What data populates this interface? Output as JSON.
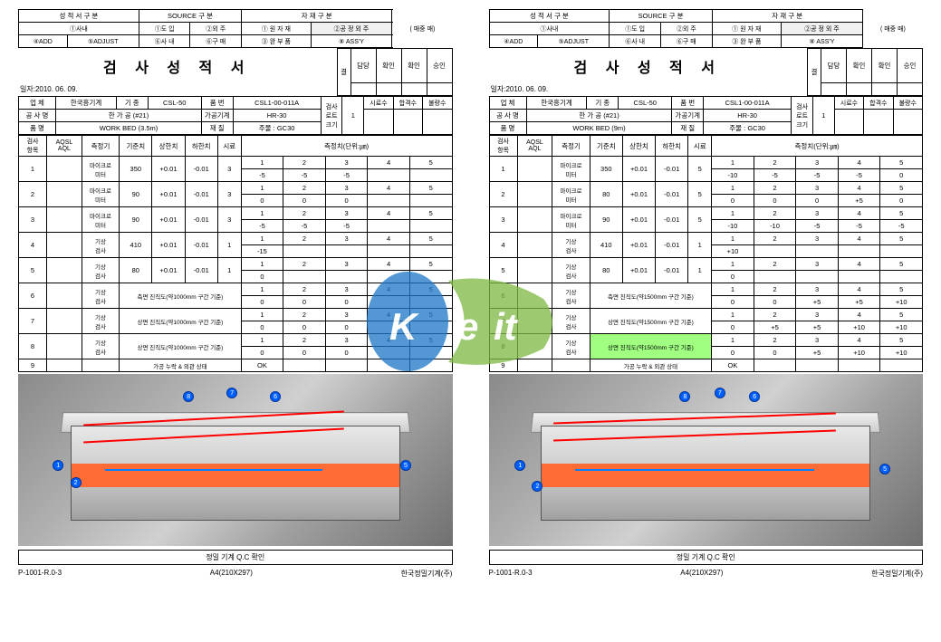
{
  "header": {
    "col1_title": "성 적 서 구 분",
    "col2_title": "SOURCE 구 분",
    "col3_title": "자 재 구 분",
    "r1_left": "①사내",
    "r2_left1": "④ADD",
    "r2_left2": "⑤ADJUST",
    "r1_c2a": "①도 입",
    "r1_c2b": "②외 주",
    "r2_c2a": "⑥사 내",
    "r2_c2b": "⑥구 매",
    "r1_c3a": "① 원 자 재",
    "r1_c3b": "②공 정 외 주",
    "r2_c3a": "③ 완 부 품",
    "r2_c3b": "⑧ ASS'Y",
    "paren": "(     매중     매)",
    "title": "검 사 성 적 서",
    "date_label": "일자:2010. 06. 09.",
    "approval_g": "결",
    "approval_j": "재",
    "appr_c1": "담당",
    "appr_c2": "확인",
    "appr_c3": "확인",
    "appr_c4": "승인"
  },
  "info": {
    "upchae_l": "업 체",
    "upchae_v": "한국흥기계",
    "gijong_l": "기 종",
    "gijong_v": "CSL-50",
    "pumbun_l": "품 번",
    "pumbun_v": "CSL1-00-011A",
    "gongsa_l": "공 사 명",
    "gongsa_v": "한 가 공 (#21)",
    "gagong_l": "가공기계",
    "gagong_v": "HR-30",
    "pummyeong_l": "품 명",
    "jaejil_l": "재 질",
    "jaejil_v": "주물 : GC30",
    "gumsa_l": "검사",
    "lot_l": "로트",
    "keugi_l": "크기",
    "lot_v": "1",
    "siryo_l": "시료수",
    "hapgyeok_l": "합격수",
    "bullyang_l": "불량수"
  },
  "left": {
    "pummyeong_v": "WORK BED (3.5m)"
  },
  "right": {
    "pummyeong_v": "WORK BED (9m)"
  },
  "th": {
    "gumsa": "검사",
    "hangmok": "항목",
    "aqsl": "AQSL",
    "aql": "AQL",
    "cheukjeong": "측정기",
    "gijun": "기준치",
    "sanghan": "상한치",
    "hahan": "하한치",
    "siryo": "시료",
    "cheukval": "측정치(단위:㎛)"
  },
  "left_rows": [
    {
      "n": "1",
      "inst": "마이크로\n미터",
      "ref": "350",
      "up": "+0.01",
      "lo": "-0.01",
      "s": "3",
      "v": [
        [
          "1",
          "2",
          "3",
          "4",
          "5"
        ],
        [
          "-5",
          "-5",
          "-5",
          "",
          ""
        ]
      ]
    },
    {
      "n": "2",
      "inst": "마이크로\n미터",
      "ref": "90",
      "up": "+0.01",
      "lo": "-0.01",
      "s": "3",
      "v": [
        [
          "1",
          "2",
          "3",
          "4",
          "5"
        ],
        [
          "0",
          "0",
          "0",
          "",
          ""
        ]
      ]
    },
    {
      "n": "3",
      "inst": "마이크로\n미터",
      "ref": "90",
      "up": "+0.01",
      "lo": "-0.01",
      "s": "3",
      "v": [
        [
          "1",
          "2",
          "3",
          "4",
          "5"
        ],
        [
          "-5",
          "-5",
          "-5",
          "",
          ""
        ]
      ]
    },
    {
      "n": "4",
      "inst": "기상\n검사",
      "ref": "410",
      "up": "+0.01",
      "lo": "-0.01",
      "s": "1",
      "v": [
        [
          "1",
          "2",
          "3",
          "4",
          "5"
        ],
        [
          "-15",
          "",
          "",
          "",
          ""
        ]
      ]
    },
    {
      "n": "5",
      "inst": "기상\n검사",
      "ref": "80",
      "up": "+0.01",
      "lo": "-0.01",
      "s": "1",
      "v": [
        [
          "1",
          "2",
          "3",
          "4",
          "5"
        ],
        [
          "0",
          "",
          "",
          "",
          ""
        ]
      ]
    },
    {
      "n": "6",
      "inst": "기상\n검사",
      "ref": "측면 진직도(약1000mm 구간 기준)",
      "up": "",
      "lo": "",
      "s": "",
      "v": [
        [
          "1",
          "2",
          "3",
          "4",
          "5"
        ],
        [
          "0",
          "0",
          "0",
          "",
          ""
        ]
      ]
    },
    {
      "n": "7",
      "inst": "기상\n검사",
      "ref": "상면 진직도(약1000mm 구간 기준)",
      "up": "",
      "lo": "",
      "s": "",
      "v": [
        [
          "1",
          "2",
          "3",
          "4",
          "5"
        ],
        [
          "0",
          "0",
          "0",
          "",
          ""
        ]
      ]
    },
    {
      "n": "8",
      "inst": "기상\n검사",
      "ref": "상면 진직도(약1000mm 구간 기준)",
      "up": "",
      "lo": "",
      "s": "",
      "v": [
        [
          "1",
          "2",
          "3",
          "4",
          "5"
        ],
        [
          "0",
          "0",
          "0",
          "",
          ""
        ]
      ]
    },
    {
      "n": "9",
      "inst": "",
      "ref": "가공 누락 & 외관 상태",
      "up": "",
      "lo": "",
      "s": "",
      "v": [
        [
          "OK",
          "",
          "",
          "",
          ""
        ],
        [
          "",
          "",
          "",
          "",
          ""
        ]
      ]
    }
  ],
  "right_rows": [
    {
      "n": "1",
      "inst": "마이크로\n미터",
      "ref": "350",
      "up": "+0.01",
      "lo": "-0.01",
      "s": "5",
      "v": [
        [
          "1",
          "2",
          "3",
          "4",
          "5"
        ],
        [
          "-10",
          "-5",
          "-5",
          "-5",
          "0"
        ]
      ]
    },
    {
      "n": "2",
      "inst": "마이크로\n미터",
      "ref": "80",
      "up": "+0.01",
      "lo": "-0.01",
      "s": "5",
      "v": [
        [
          "1",
          "2",
          "3",
          "4",
          "5"
        ],
        [
          "0",
          "0",
          "0",
          "+5",
          "0"
        ]
      ]
    },
    {
      "n": "3",
      "inst": "마이크로\n미터",
      "ref": "90",
      "up": "+0.01",
      "lo": "-0.01",
      "s": "5",
      "v": [
        [
          "1",
          "2",
          "3",
          "4",
          "5"
        ],
        [
          "-10",
          "-10",
          "-5",
          "-5",
          "-5"
        ]
      ]
    },
    {
      "n": "4",
      "inst": "기상\n검사",
      "ref": "410",
      "up": "+0.01",
      "lo": "-0.01",
      "s": "1",
      "v": [
        [
          "1",
          "2",
          "3",
          "4",
          "5"
        ],
        [
          "+10",
          "",
          "",
          "",
          ""
        ]
      ]
    },
    {
      "n": "5",
      "inst": "기상\n검사",
      "ref": "80",
      "up": "+0.01",
      "lo": "-0.01",
      "s": "1",
      "v": [
        [
          "1",
          "2",
          "3",
          "4",
          "5"
        ],
        [
          "0",
          "",
          "",
          "",
          ""
        ]
      ]
    },
    {
      "n": "6",
      "inst": "기상\n검사",
      "ref": "측면 진직도(약1500mm 구간 기준)",
      "up": "",
      "lo": "",
      "s": "",
      "v": [
        [
          "1",
          "2",
          "3",
          "4",
          "5"
        ],
        [
          "0",
          "0",
          "+5",
          "+5",
          "+10"
        ]
      ]
    },
    {
      "n": "7",
      "inst": "기상\n검사",
      "ref": "상면 진직도(약1500mm 구간 기준)",
      "up": "",
      "lo": "",
      "s": "",
      "v": [
        [
          "1",
          "2",
          "3",
          "4",
          "5"
        ],
        [
          "0",
          "+5",
          "+5",
          "+10",
          "+10"
        ]
      ]
    },
    {
      "n": "8",
      "inst": "기상\n검사",
      "ref": "상면 진직도(약1500mm 구간 기준)",
      "up": "",
      "lo": "",
      "s": "",
      "v": [
        [
          "1",
          "2",
          "3",
          "4",
          "5"
        ],
        [
          "0",
          "0",
          "+5",
          "+10",
          "+10"
        ]
      ]
    },
    {
      "n": "9",
      "inst": "",
      "ref": "가공 누락 & 외관 상태",
      "up": "",
      "lo": "",
      "s": "",
      "v": [
        [
          "OK",
          "",
          "",
          "",
          ""
        ],
        [
          "",
          "",
          "",
          "",
          ""
        ]
      ]
    }
  ],
  "qc_confirm": "정밀 기계 Q.C 확인",
  "footer": {
    "left": "P-1001-R.0-3",
    "mid": "A4(210X297)",
    "right": "한국정밀기계(주)"
  },
  "green_note": "상면 진직도"
}
